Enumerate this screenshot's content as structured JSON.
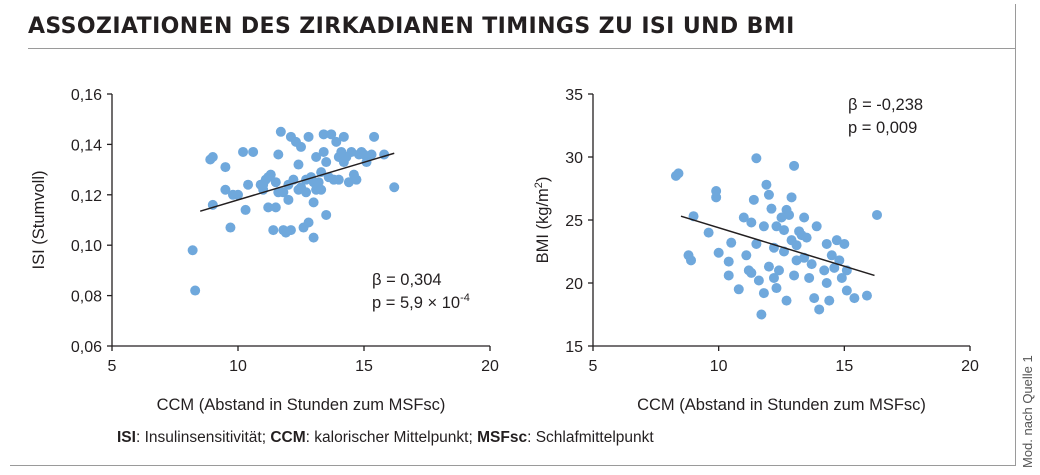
{
  "title": "ASSOZIATIONEN DES ZIRKADIANEN TIMINGS ZU ISI UND BMI",
  "side_note": "Mod. nach Quelle 1",
  "footer": {
    "abbr1": "ISI",
    "def1": ": Insulinsensitivität; ",
    "abbr2": "CCM",
    "def2": ": kalorischer Mittelpunkt; ",
    "abbr3": "MSFsc",
    "def3": ": Schlafmittelpunkt"
  },
  "colors": {
    "points": "#6fa8dc",
    "trend": "#231f20",
    "axis": "#231f20"
  },
  "chart_data": [
    {
      "type": "scatter",
      "xlabel": "CCM (Abstand in Stunden zum MSFsc)",
      "ylabel": "ISI (Stumvoll)",
      "xlim": [
        5,
        20
      ],
      "ylim": [
        0.06,
        0.16
      ],
      "xticks": [
        5,
        10,
        15,
        20
      ],
      "xtick_labels": [
        "5",
        "10",
        "15",
        "20"
      ],
      "yticks": [
        0.06,
        0.08,
        0.1,
        0.12,
        0.14,
        0.16
      ],
      "ytick_labels": [
        "0,06",
        "0,08",
        "0,10",
        "0,12",
        "0,14",
        "0,16"
      ],
      "trend": {
        "x": [
          8.5,
          16.2
        ],
        "y": [
          0.1135,
          0.1365
        ]
      },
      "stats": {
        "beta": "β = 0,304",
        "p_text": "p = 5,9 × 10",
        "p_exp": "-4"
      },
      "points": [
        [
          8.2,
          0.098
        ],
        [
          8.3,
          0.082
        ],
        [
          8.9,
          0.134
        ],
        [
          9.0,
          0.135
        ],
        [
          9.0,
          0.116
        ],
        [
          9.5,
          0.131
        ],
        [
          9.5,
          0.122
        ],
        [
          9.7,
          0.107
        ],
        [
          9.8,
          0.12
        ],
        [
          10.0,
          0.12
        ],
        [
          10.2,
          0.137
        ],
        [
          10.3,
          0.114
        ],
        [
          10.4,
          0.124
        ],
        [
          10.6,
          0.137
        ],
        [
          10.9,
          0.124
        ],
        [
          11.0,
          0.122
        ],
        [
          11.0,
          0.124
        ],
        [
          11.1,
          0.126
        ],
        [
          11.2,
          0.127
        ],
        [
          11.2,
          0.115
        ],
        [
          11.3,
          0.128
        ],
        [
          11.4,
          0.106
        ],
        [
          11.5,
          0.125
        ],
        [
          11.5,
          0.115
        ],
        [
          11.6,
          0.121
        ],
        [
          11.6,
          0.136
        ],
        [
          11.7,
          0.145
        ],
        [
          11.8,
          0.121
        ],
        [
          11.8,
          0.106
        ],
        [
          11.9,
          0.105
        ],
        [
          12.0,
          0.124
        ],
        [
          12.0,
          0.118
        ],
        [
          12.1,
          0.143
        ],
        [
          12.1,
          0.106
        ],
        [
          12.2,
          0.126
        ],
        [
          12.3,
          0.141
        ],
        [
          12.4,
          0.122
        ],
        [
          12.4,
          0.132
        ],
        [
          12.5,
          0.139
        ],
        [
          12.5,
          0.123
        ],
        [
          12.6,
          0.107
        ],
        [
          12.7,
          0.126
        ],
        [
          12.7,
          0.121
        ],
        [
          12.8,
          0.143
        ],
        [
          12.8,
          0.109
        ],
        [
          12.9,
          0.127
        ],
        [
          13.0,
          0.125
        ],
        [
          13.0,
          0.117
        ],
        [
          13.0,
          0.103
        ],
        [
          13.1,
          0.135
        ],
        [
          13.1,
          0.122
        ],
        [
          13.2,
          0.125
        ],
        [
          13.3,
          0.129
        ],
        [
          13.3,
          0.122
        ],
        [
          13.4,
          0.137
        ],
        [
          13.4,
          0.144
        ],
        [
          13.5,
          0.133
        ],
        [
          13.5,
          0.112
        ],
        [
          13.6,
          0.127
        ],
        [
          13.7,
          0.144
        ],
        [
          13.8,
          0.126
        ],
        [
          13.9,
          0.141
        ],
        [
          14.0,
          0.135
        ],
        [
          14.0,
          0.126
        ],
        [
          14.1,
          0.137
        ],
        [
          14.2,
          0.143
        ],
        [
          14.2,
          0.133
        ],
        [
          14.3,
          0.135
        ],
        [
          14.4,
          0.125
        ],
        [
          14.5,
          0.137
        ],
        [
          14.6,
          0.128
        ],
        [
          14.7,
          0.126
        ],
        [
          14.8,
          0.136
        ],
        [
          14.9,
          0.137
        ],
        [
          15.0,
          0.136
        ],
        [
          15.1,
          0.133
        ],
        [
          15.3,
          0.136
        ],
        [
          15.4,
          0.143
        ],
        [
          15.8,
          0.136
        ],
        [
          16.2,
          0.123
        ]
      ]
    },
    {
      "type": "scatter",
      "xlabel": "CCM (Abstand in Stunden zum MSFsc)",
      "ylabel": "BMI (kg/m",
      "ylabel_sup": "2",
      "ylabel_end": ")",
      "xlim": [
        5,
        20
      ],
      "ylim": [
        15,
        35
      ],
      "xticks": [
        5,
        10,
        15,
        20
      ],
      "xtick_labels": [
        "5",
        "10",
        "15",
        "20"
      ],
      "yticks": [
        15,
        20,
        25,
        30,
        35
      ],
      "ytick_labels": [
        "15",
        "20",
        "25",
        "30",
        "35"
      ],
      "trend": {
        "x": [
          8.5,
          16.2
        ],
        "y": [
          25.3,
          20.6
        ]
      },
      "stats": {
        "beta": "β = -0,238",
        "p_text": "p = 0,009",
        "p_exp": ""
      },
      "points": [
        [
          8.3,
          28.5
        ],
        [
          8.4,
          28.7
        ],
        [
          8.8,
          22.2
        ],
        [
          8.9,
          21.8
        ],
        [
          9.0,
          25.3
        ],
        [
          9.6,
          24.0
        ],
        [
          9.9,
          26.8
        ],
        [
          9.9,
          27.3
        ],
        [
          10.0,
          22.4
        ],
        [
          10.4,
          21.7
        ],
        [
          10.4,
          20.6
        ],
        [
          10.5,
          23.2
        ],
        [
          10.8,
          19.5
        ],
        [
          11.0,
          25.2
        ],
        [
          11.1,
          22.2
        ],
        [
          11.2,
          21.0
        ],
        [
          11.3,
          20.8
        ],
        [
          11.3,
          24.8
        ],
        [
          11.4,
          26.6
        ],
        [
          11.5,
          29.9
        ],
        [
          11.5,
          23.1
        ],
        [
          11.6,
          20.2
        ],
        [
          11.7,
          17.5
        ],
        [
          11.8,
          19.2
        ],
        [
          11.8,
          24.5
        ],
        [
          11.9,
          27.8
        ],
        [
          12.0,
          21.3
        ],
        [
          12.0,
          27.0
        ],
        [
          12.1,
          25.9
        ],
        [
          12.2,
          20.4
        ],
        [
          12.2,
          22.8
        ],
        [
          12.3,
          24.5
        ],
        [
          12.3,
          19.6
        ],
        [
          12.4,
          21.0
        ],
        [
          12.5,
          25.2
        ],
        [
          12.6,
          22.5
        ],
        [
          12.6,
          24.2
        ],
        [
          12.7,
          25.8
        ],
        [
          12.7,
          18.6
        ],
        [
          12.8,
          25.4
        ],
        [
          12.9,
          23.4
        ],
        [
          12.9,
          26.8
        ],
        [
          13.0,
          29.3
        ],
        [
          13.0,
          20.6
        ],
        [
          13.1,
          23.0
        ],
        [
          13.1,
          21.8
        ],
        [
          13.2,
          24.1
        ],
        [
          13.3,
          23.8
        ],
        [
          13.4,
          25.2
        ],
        [
          13.4,
          22.0
        ],
        [
          13.5,
          23.6
        ],
        [
          13.6,
          20.4
        ],
        [
          13.7,
          21.5
        ],
        [
          13.8,
          18.8
        ],
        [
          13.9,
          24.5
        ],
        [
          14.0,
          17.9
        ],
        [
          14.2,
          21.0
        ],
        [
          14.3,
          20.0
        ],
        [
          14.3,
          23.1
        ],
        [
          14.4,
          18.6
        ],
        [
          14.5,
          22.2
        ],
        [
          14.6,
          21.2
        ],
        [
          14.7,
          23.4
        ],
        [
          14.8,
          21.8
        ],
        [
          14.9,
          20.4
        ],
        [
          15.0,
          23.1
        ],
        [
          15.1,
          21.0
        ],
        [
          15.1,
          19.4
        ],
        [
          15.4,
          18.8
        ],
        [
          15.9,
          19.0
        ],
        [
          16.3,
          25.4
        ]
      ]
    }
  ]
}
